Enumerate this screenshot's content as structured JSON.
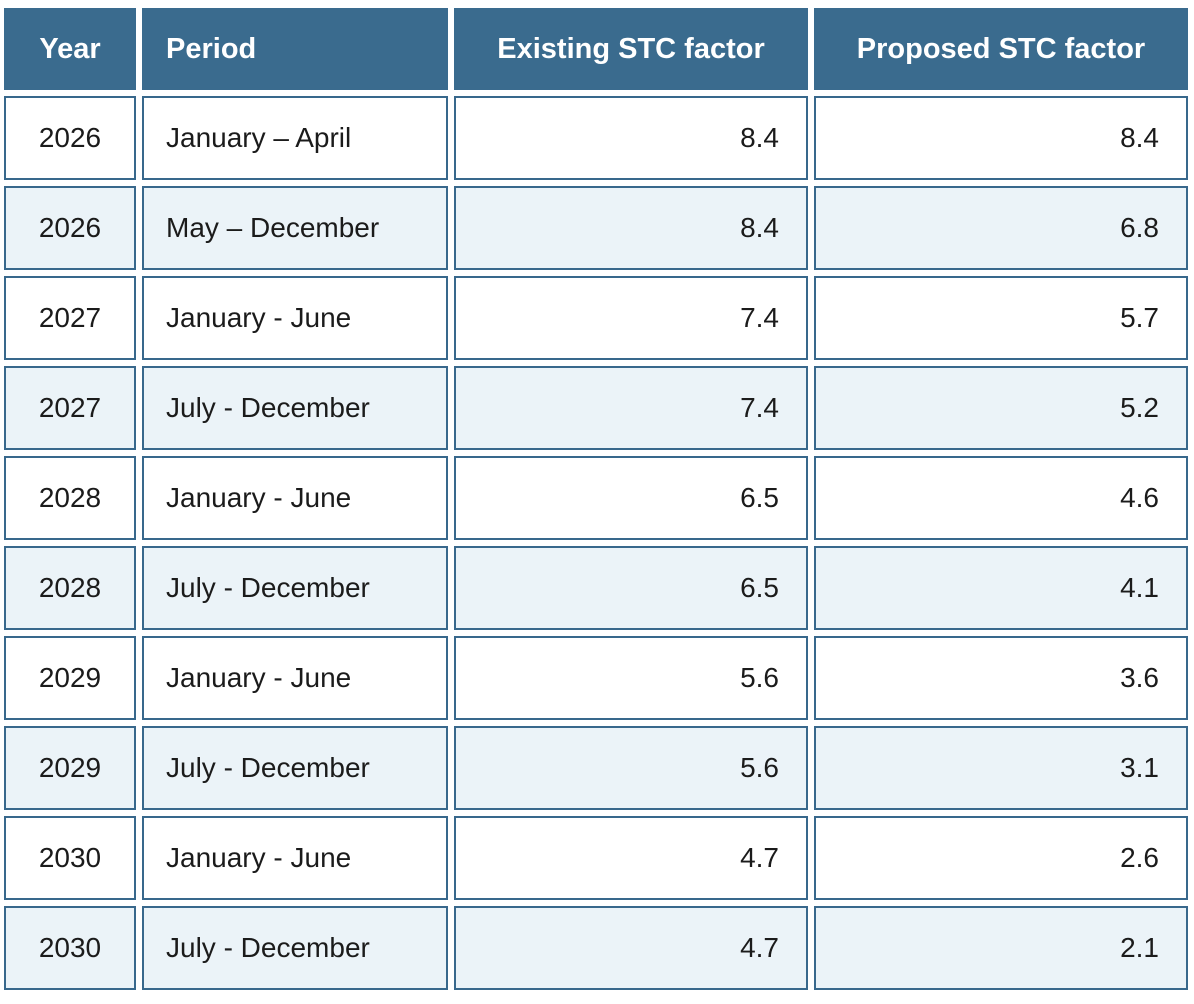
{
  "chart_data": {
    "type": "table",
    "title": "",
    "columns": [
      "Year",
      "Period",
      "Existing STC factor",
      "Proposed STC factor"
    ],
    "rows": [
      [
        "2026",
        "January – April",
        "8.4",
        "8.4"
      ],
      [
        "2026",
        "May – December",
        "8.4",
        "6.8"
      ],
      [
        "2027",
        "January - June",
        "7.4",
        "5.7"
      ],
      [
        "2027",
        "July - December",
        "7.4",
        "5.2"
      ],
      [
        "2028",
        "January - June",
        "6.5",
        "4.6"
      ],
      [
        "2028",
        "July - December",
        "6.5",
        "4.1"
      ],
      [
        "2029",
        "January - June",
        "5.6",
        "3.6"
      ],
      [
        "2029",
        "July - December",
        "5.6",
        "3.1"
      ],
      [
        "2030",
        "January - June",
        "4.7",
        "2.6"
      ],
      [
        "2030",
        "July - December",
        "4.7",
        "2.1"
      ]
    ],
    "layout_hints": {
      "header_alignment": [
        "center",
        "left",
        "center",
        "center"
      ],
      "body_alignment": [
        "center",
        "left",
        "right",
        "right"
      ],
      "striped": "even rows shaded"
    }
  },
  "colors": {
    "header_bg": "#3A6B8E",
    "header_text": "#FFFFFF",
    "cell_border": "#38688C",
    "row_bg": "#FFFFFF",
    "row_alt_bg": "#EBF3F8",
    "body_text": "#1B1B1B"
  }
}
